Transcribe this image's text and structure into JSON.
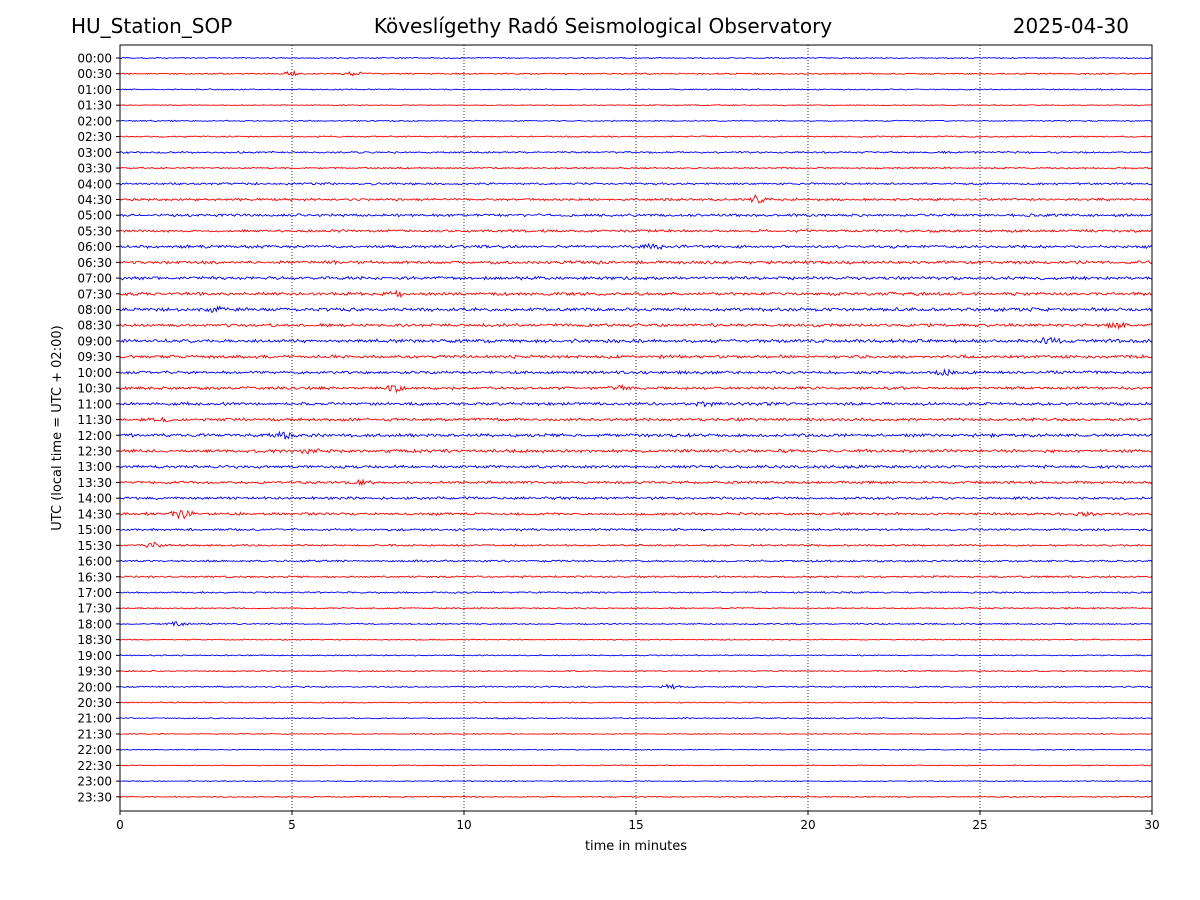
{
  "header": {
    "station": "HU_Station_SOP",
    "title": "Köveslígethy Radó Seismological Observatory",
    "date": "2025-04-30"
  },
  "chart_data": {
    "type": "line",
    "title": "Köveslígethy Radó Seismological Observatory",
    "xlabel": "time in minutes",
    "ylabel": "UTC (local time = UTC + 02:00)",
    "xlim": [
      0,
      30
    ],
    "xticks": [
      0,
      5,
      10,
      15,
      20,
      25,
      30
    ],
    "grid": "vertical dotted at x ticks",
    "trace_colors": [
      "#0000ff",
      "#ff0000"
    ],
    "rows": [
      "00:00",
      "00:30",
      "01:00",
      "01:30",
      "02:00",
      "02:30",
      "03:00",
      "03:30",
      "04:00",
      "04:30",
      "05:00",
      "05:30",
      "06:00",
      "06:30",
      "07:00",
      "07:30",
      "08:00",
      "08:30",
      "09:00",
      "09:30",
      "10:00",
      "10:30",
      "11:00",
      "11:30",
      "12:00",
      "12:30",
      "13:00",
      "13:30",
      "14:00",
      "14:30",
      "15:00",
      "15:30",
      "16:00",
      "16:30",
      "17:00",
      "17:30",
      "18:00",
      "18:30",
      "19:00",
      "19:30",
      "20:00",
      "20:30",
      "21:00",
      "21:30",
      "22:00",
      "22:30",
      "23:00",
      "23:30"
    ],
    "noise_level": [
      0.5,
      0.6,
      0.5,
      0.4,
      0.5,
      0.6,
      0.8,
      0.7,
      0.9,
      1.0,
      1.1,
      1.1,
      1.2,
      1.3,
      1.3,
      1.3,
      1.4,
      1.3,
      1.4,
      1.3,
      1.2,
      1.2,
      1.2,
      1.2,
      1.3,
      1.3,
      1.2,
      1.1,
      1.1,
      1.1,
      0.9,
      0.8,
      0.8,
      0.8,
      0.7,
      0.6,
      0.6,
      0.5,
      0.5,
      0.5,
      0.6,
      0.5,
      0.5,
      0.4,
      0.4,
      0.4,
      0.4,
      0.5
    ],
    "events": [
      {
        "row": "00:30",
        "minute": 5.0,
        "amplitude": 2.0
      },
      {
        "row": "00:30",
        "minute": 6.8,
        "amplitude": 2.0
      },
      {
        "row": "04:30",
        "minute": 18.5,
        "amplitude": 4.0
      },
      {
        "row": "06:00",
        "minute": 15.5,
        "amplitude": 2.5
      },
      {
        "row": "07:30",
        "minute": 8.0,
        "amplitude": 2.0
      },
      {
        "row": "08:00",
        "minute": 2.8,
        "amplitude": 2.0
      },
      {
        "row": "08:30",
        "minute": 29.0,
        "amplitude": 2.0
      },
      {
        "row": "09:00",
        "minute": 27.0,
        "amplitude": 3.0
      },
      {
        "row": "10:00",
        "minute": 24.0,
        "amplitude": 2.0
      },
      {
        "row": "10:30",
        "minute": 8.0,
        "amplitude": 2.5
      },
      {
        "row": "10:30",
        "minute": 14.5,
        "amplitude": 2.0
      },
      {
        "row": "11:00",
        "minute": 17.0,
        "amplitude": 1.5
      },
      {
        "row": "11:30",
        "minute": 1.2,
        "amplitude": 2.0
      },
      {
        "row": "12:00",
        "minute": 4.8,
        "amplitude": 2.5
      },
      {
        "row": "12:30",
        "minute": 5.5,
        "amplitude": 2.0
      },
      {
        "row": "13:30",
        "minute": 7.0,
        "amplitude": 1.8
      },
      {
        "row": "14:30",
        "minute": 1.8,
        "amplitude": 5.0
      },
      {
        "row": "14:30",
        "minute": 28.0,
        "amplitude": 1.5
      },
      {
        "row": "15:30",
        "minute": 1.0,
        "amplitude": 2.0
      },
      {
        "row": "18:00",
        "minute": 1.7,
        "amplitude": 2.0
      },
      {
        "row": "20:00",
        "minute": 16.0,
        "amplitude": 2.0
      }
    ]
  }
}
